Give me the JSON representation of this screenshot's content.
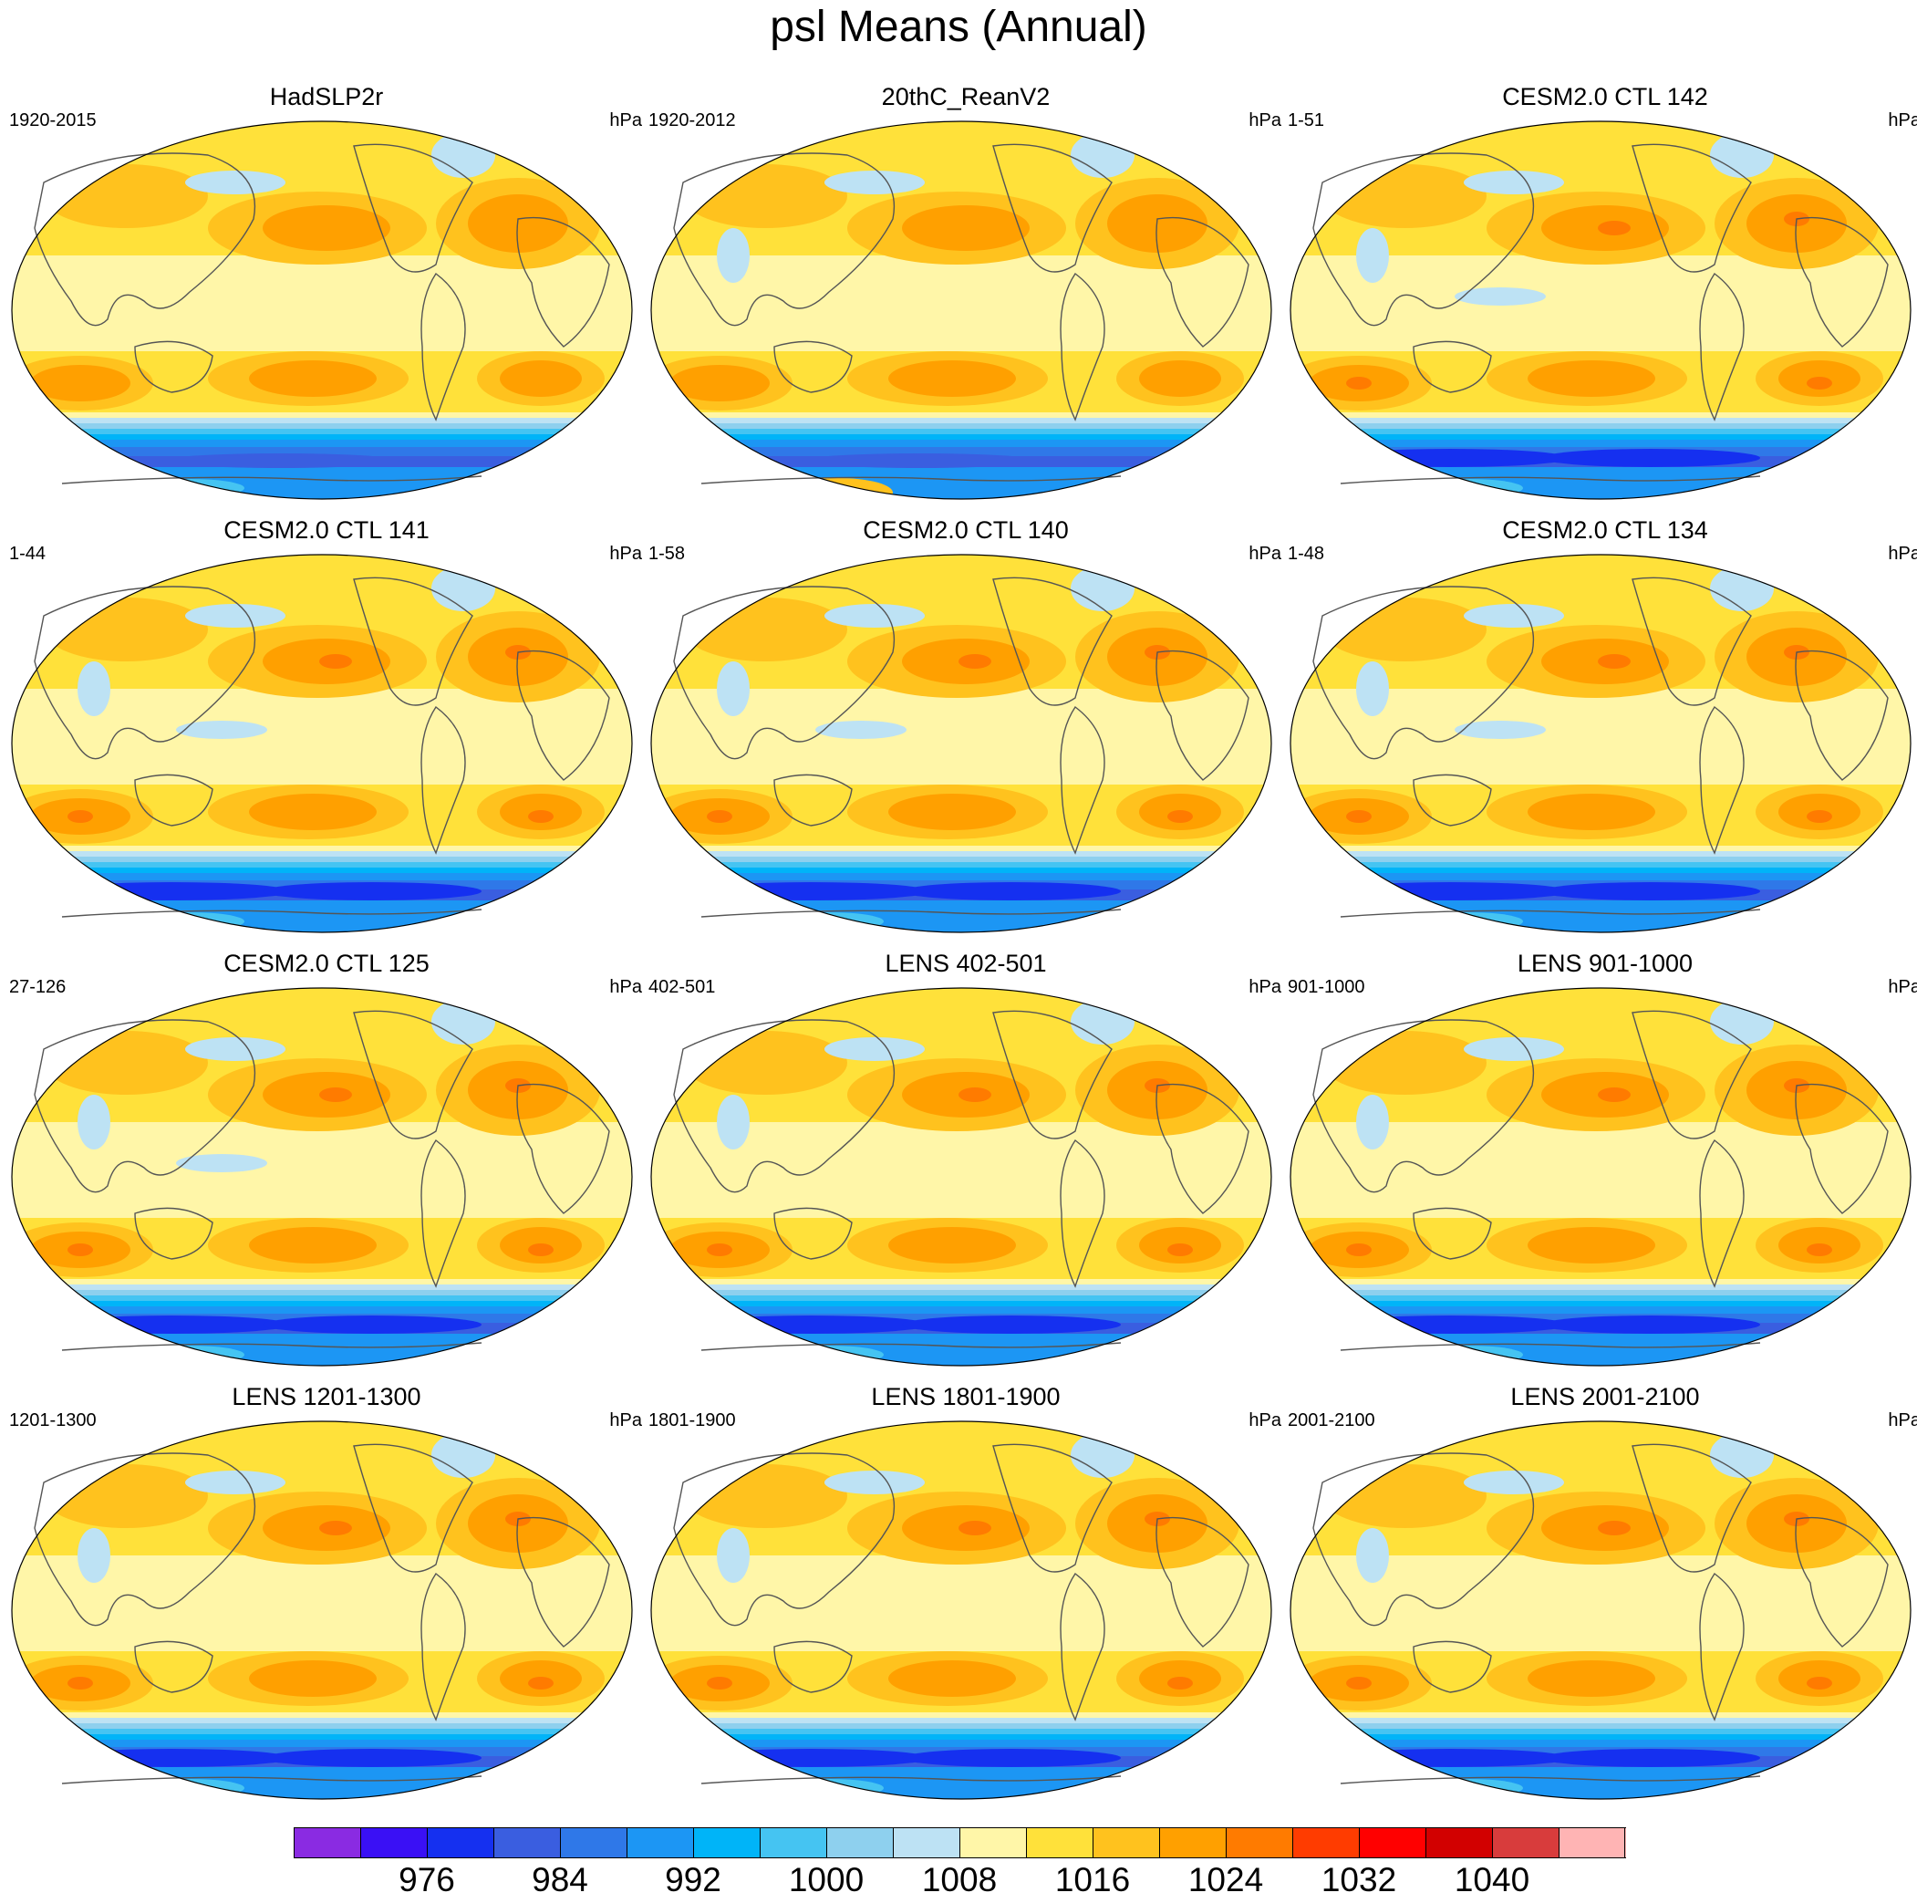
{
  "title": "psl Means (Annual)",
  "units": "hPa",
  "panels": [
    {
      "title": "HadSLP2r",
      "range": "1920-2015",
      "variant": "obs1"
    },
    {
      "title": "20thC_ReanV2",
      "range": "1920-2012",
      "variant": "obs2"
    },
    {
      "title": "CESM2.0 CTL 142",
      "range": "1-51",
      "variant": "model"
    },
    {
      "title": "CESM2.0 CTL 141",
      "range": "1-44",
      "variant": "model"
    },
    {
      "title": "CESM2.0 CTL 140",
      "range": "1-58",
      "variant": "model"
    },
    {
      "title": "CESM2.0 CTL 134",
      "range": "1-48",
      "variant": "model"
    },
    {
      "title": "CESM2.0 CTL 125",
      "range": "27-126",
      "variant": "model"
    },
    {
      "title": "LENS 402-501",
      "range": "402-501",
      "variant": "lens"
    },
    {
      "title": "LENS 901-1000",
      "range": "901-1000",
      "variant": "lens"
    },
    {
      "title": "LENS 1201-1300",
      "range": "1201-1300",
      "variant": "lens"
    },
    {
      "title": "LENS 1801-1900",
      "range": "1801-1900",
      "variant": "lens"
    },
    {
      "title": "LENS 2001-2100",
      "range": "2001-2100",
      "variant": "lens"
    }
  ],
  "colorbar": {
    "levels": [
      972,
      976,
      980,
      984,
      988,
      992,
      996,
      1000,
      1004,
      1008,
      1012,
      1016,
      1020,
      1024,
      1028,
      1032,
      1036,
      1040,
      1044
    ],
    "labels": [
      "976",
      "984",
      "992",
      "1000",
      "1008",
      "1016",
      "1024",
      "1032",
      "1040"
    ],
    "colors": [
      "#8a2be2",
      "#3a10f5",
      "#1530f0",
      "#3a5ee0",
      "#2f78e8",
      "#1c96f4",
      "#00b4f8",
      "#45c4f2",
      "#8ed0ee",
      "#bde2f4",
      "#fff6a8",
      "#ffe13a",
      "#ffc21e",
      "#ffa000",
      "#ff7b00",
      "#ff3c00",
      "#ff0000",
      "#d20000",
      "#d83c3c",
      "#ffb4b4"
    ]
  }
}
